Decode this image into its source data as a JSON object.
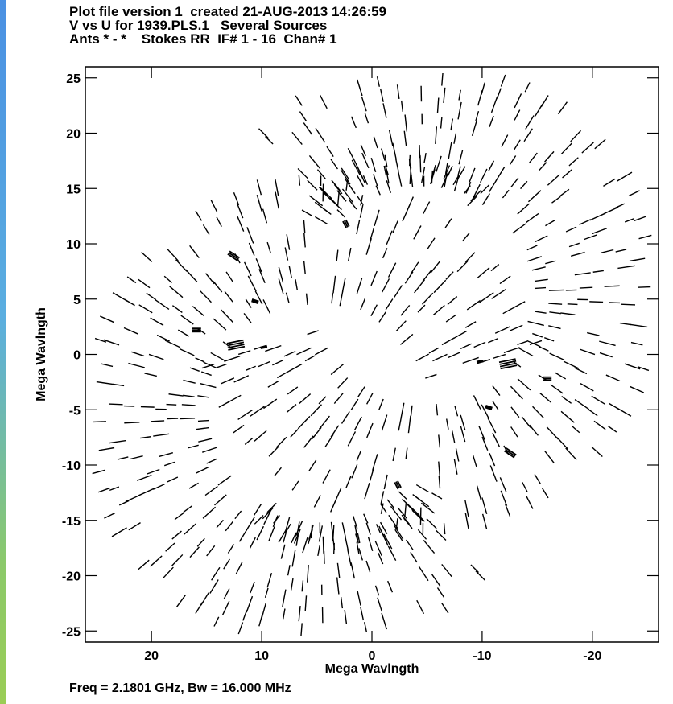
{
  "header": {
    "line1": "Plot file version 1  created 21-AUG-2013 14:26:59",
    "line2": "V vs U for 1939.PLS.1   Several Sources",
    "line3": "Ants * - *    Stokes RR  IF# 1 - 16  Chan# 1"
  },
  "footer": {
    "text": "Freq = 2.1801 GHz, Bw = 16.000 MHz"
  },
  "colors": {
    "background": "#ffffff",
    "ink": "#000000",
    "side_strip_top": "#4a90e2",
    "side_strip_bottom": "#9acd55"
  },
  "chart_data": {
    "type": "scatter",
    "xlabel": "Mega Wavlngth",
    "ylabel": "Mega Wavlngth",
    "xlim": [
      26,
      -26
    ],
    "ylim": [
      -26,
      26
    ],
    "x_reversed": true,
    "grid": false,
    "x_ticks": [
      20,
      10,
      0,
      -10,
      -20
    ],
    "x_tick_labels": [
      "20",
      "10",
      "0",
      "-10",
      "-20"
    ],
    "y_ticks": [
      25,
      20,
      15,
      10,
      5,
      0,
      -5,
      -10,
      -15,
      -20,
      -25
    ],
    "y_tick_labels": [
      "25",
      "20",
      "15",
      "10",
      "5",
      "0",
      "-5",
      "-10",
      "-15",
      "-20",
      "-25"
    ],
    "arcs": [
      {
        "center": [
          -4.8,
          5.3
        ],
        "radii": [
          10.6,
          11.9,
          13.2,
          14.5,
          15.8,
          17.1,
          18.4,
          19.7,
          20.9
        ],
        "angle_start": 45,
        "angle_end": 345,
        "step": 5.5
      },
      {
        "center": [
          -3.0,
          7.7
        ],
        "radii": [
          8.6,
          9.3,
          10.0
        ],
        "angle_start": 30,
        "angle_end": 135,
        "step": 7
      }
    ],
    "clusters": [
      {
        "u": 13.0,
        "v": 9.2,
        "du": -0.9,
        "dv": -0.6,
        "copies": 3,
        "spread": 0.15
      },
      {
        "u": 10.3,
        "v": 4.7,
        "du": 0.6,
        "dv": 0.2,
        "copies": 3,
        "spread": 0.1
      },
      {
        "u": 2.2,
        "v": 11.5,
        "du": 0.3,
        "dv": 0.6,
        "copies": 3,
        "spread": 0.15
      },
      {
        "u": 15.5,
        "v": 2.2,
        "du": 0.8,
        "dv": 0.0,
        "copies": 3,
        "spread": 0.15
      },
      {
        "u": 11.6,
        "v": 1.0,
        "du": 1.5,
        "dv": -0.3,
        "copies": 4,
        "spread": 0.2
      },
      {
        "u": 9.5,
        "v": 0.7,
        "du": 0.6,
        "dv": -0.1,
        "copies": 2,
        "spread": 0.1
      }
    ]
  }
}
